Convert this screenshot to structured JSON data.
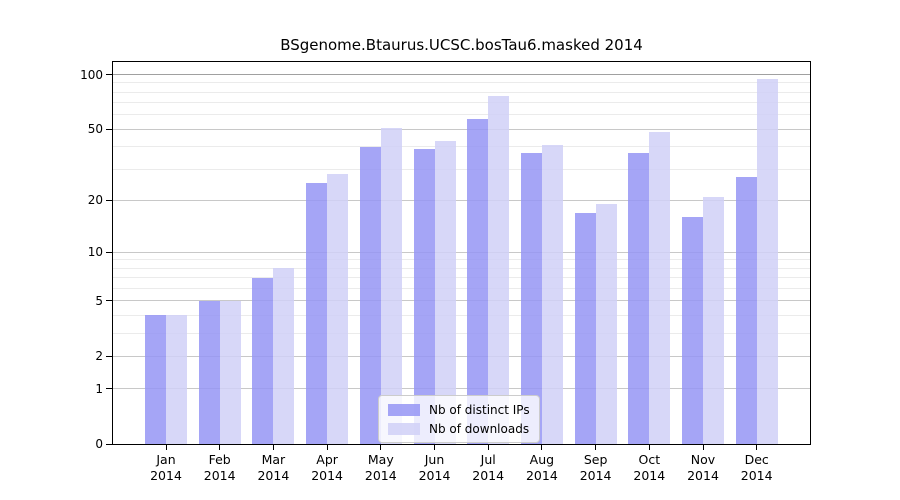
{
  "chart_data": {
    "type": "bar",
    "title": "BSgenome.Btaurus.UCSC.bosTau6.masked 2014",
    "categories": [
      "Jan",
      "Feb",
      "Mar",
      "Apr",
      "May",
      "Jun",
      "Jul",
      "Aug",
      "Sep",
      "Oct",
      "Nov",
      "Dec"
    ],
    "tick_label_year": "2014",
    "series": [
      {
        "name": "Nb of distinct IPs",
        "color": "#9595f4",
        "alpha": 0.85,
        "values": [
          4,
          5,
          7,
          25,
          40,
          39,
          57,
          37,
          17,
          37,
          16,
          27
        ]
      },
      {
        "name": "Nb of downloads",
        "color": "#d0d0f7",
        "alpha": 0.85,
        "values": [
          4,
          5,
          8,
          28,
          51,
          43,
          76,
          41,
          19,
          48,
          21,
          95
        ]
      }
    ],
    "yscale": "log1p",
    "ylim": [
      0,
      117.2
    ],
    "yticks": [
      100,
      50,
      20,
      10,
      5,
      2,
      1,
      0
    ],
    "minor_yticks": [
      3,
      4,
      6,
      7,
      8,
      9,
      30,
      40,
      60,
      70,
      80,
      90
    ],
    "grid": true,
    "legend_position": "lower center",
    "colors": {
      "grid_major": "#c8c8c8",
      "grid_minor": "#ebebeb",
      "grid_top": "#a0a0a0",
      "axis": "#000000",
      "background": "#ffffff"
    }
  }
}
